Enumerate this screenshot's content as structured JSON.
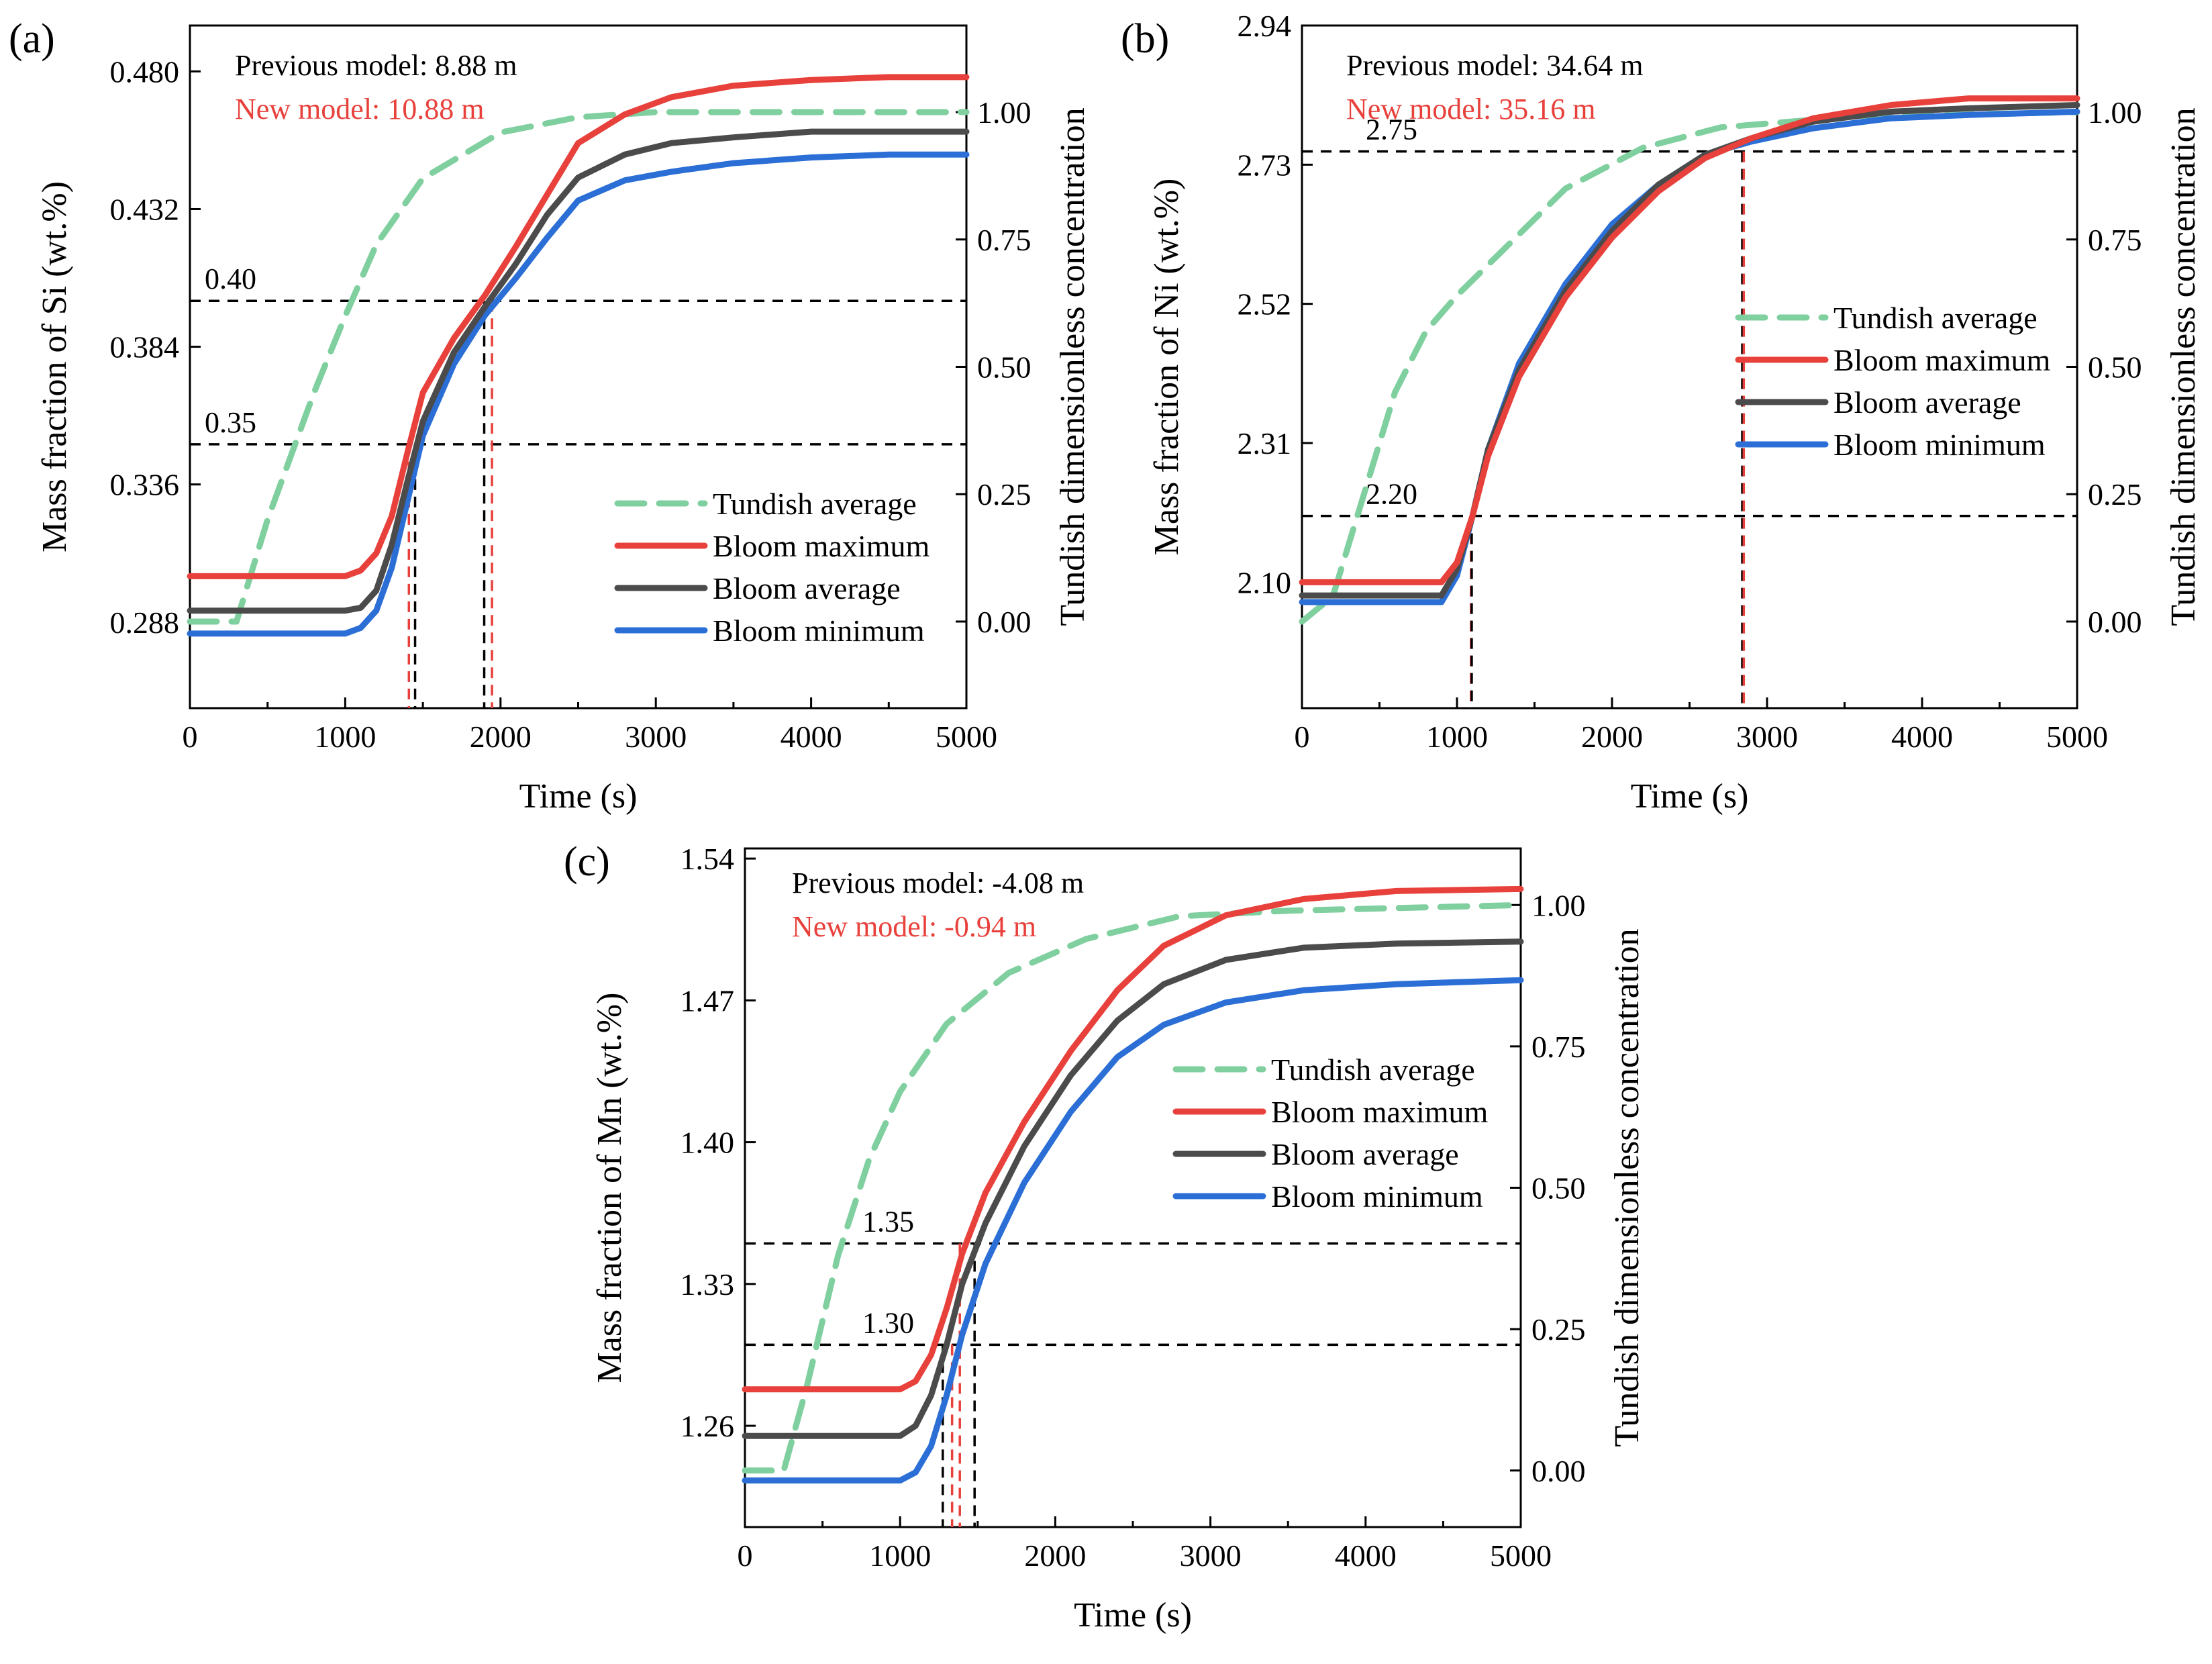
{
  "legend": [
    "Tundish average",
    "Bloom maximum",
    "Bloom average",
    "Bloom minimum"
  ],
  "colors": {
    "tundish": "#7fcf9f",
    "maximum": "#e8413c",
    "average": "#4b4b4b",
    "minimum": "#2b6fd6",
    "marker_black": "#000000",
    "marker_red": "#e8413c",
    "note_red": "#e8413c"
  },
  "chart_data": [
    {
      "type": "line",
      "panel_label": "(a)",
      "xlabel": "Time (s)",
      "ylabel": "Mass fraction of Si (wt.%)",
      "y2label": "Tundish dimensionless concentration",
      "xlim": [
        0,
        5000
      ],
      "ylim": [
        0.258,
        0.496
      ],
      "y2lim": [
        -0.17,
        1.17
      ],
      "xticks": [
        "0",
        "1000",
        "2000",
        "3000",
        "4000",
        "5000"
      ],
      "yticks": [
        "0.288",
        "0.336",
        "0.384",
        "0.432",
        "0.480"
      ],
      "y2ticks": [
        "0.00",
        "0.25",
        "0.50",
        "0.75",
        "1.00"
      ],
      "previous_model": "Previous model: 8.88 m",
      "new_model": "New model: 10.88 m",
      "thresholds": [
        {
          "label": "0.40",
          "value": 0.4
        },
        {
          "label": "0.35",
          "value": 0.35
        }
      ],
      "markers": [
        {
          "x": 1410,
          "color": "red",
          "threshold": 0.35
        },
        {
          "x": 1450,
          "color": "black",
          "threshold": 0.35
        },
        {
          "x": 1895,
          "color": "black",
          "threshold": 0.4
        },
        {
          "x": 1945,
          "color": "red",
          "threshold": 0.4
        }
      ],
      "tundish": {
        "t0": 0,
        "values": [
          [
            0,
            0.0
          ],
          [
            300,
            0.0
          ],
          [
            500,
            0.2
          ],
          [
            800,
            0.45
          ],
          [
            1000,
            0.6
          ],
          [
            1200,
            0.74
          ],
          [
            1500,
            0.87
          ],
          [
            2000,
            0.96
          ],
          [
            2500,
            0.99
          ],
          [
            3000,
            1.0
          ],
          [
            5000,
            1.0
          ]
        ]
      },
      "series": [
        {
          "name": "Bloom maximum",
          "x": [
            0,
            1000,
            1100,
            1200,
            1300,
            1400,
            1500,
            1700,
            1900,
            2100,
            2300,
            2500,
            2800,
            3100,
            3500,
            4000,
            4500,
            5000
          ],
          "y": [
            0.304,
            0.304,
            0.306,
            0.312,
            0.325,
            0.347,
            0.368,
            0.387,
            0.402,
            0.419,
            0.437,
            0.455,
            0.465,
            0.471,
            0.475,
            0.477,
            0.478,
            0.478
          ]
        },
        {
          "name": "Bloom average",
          "x": [
            0,
            1000,
            1100,
            1200,
            1300,
            1400,
            1500,
            1700,
            1900,
            2100,
            2300,
            2500,
            2800,
            3100,
            3500,
            4000,
            4500,
            5000
          ],
          "y": [
            0.292,
            0.292,
            0.293,
            0.299,
            0.315,
            0.337,
            0.358,
            0.382,
            0.398,
            0.413,
            0.43,
            0.443,
            0.451,
            0.455,
            0.457,
            0.459,
            0.459,
            0.459
          ]
        },
        {
          "name": "Bloom minimum",
          "x": [
            0,
            1000,
            1100,
            1200,
            1300,
            1400,
            1500,
            1700,
            1900,
            2100,
            2300,
            2500,
            2800,
            3100,
            3500,
            4000,
            4500,
            5000
          ],
          "y": [
            0.284,
            0.284,
            0.286,
            0.292,
            0.307,
            0.33,
            0.353,
            0.378,
            0.395,
            0.408,
            0.422,
            0.435,
            0.442,
            0.445,
            0.448,
            0.45,
            0.451,
            0.451
          ]
        }
      ]
    },
    {
      "type": "line",
      "panel_label": "(b)",
      "xlabel": "Time (s)",
      "ylabel": "Mass fraction of Ni (wt.%)",
      "y2label": "Tundish dimensionless concentration",
      "xlim": [
        0,
        5000
      ],
      "ylim": [
        1.91,
        2.94
      ],
      "y2lim": [
        -0.17,
        1.17
      ],
      "xticks": [
        "0",
        "1000",
        "2000",
        "3000",
        "4000",
        "5000"
      ],
      "yticks": [
        "2.10",
        "2.31",
        "2.52",
        "2.73",
        "2.94"
      ],
      "y2ticks": [
        "0.00",
        "0.25",
        "0.50",
        "0.75",
        "1.00"
      ],
      "previous_model": "Previous model: 34.64 m",
      "new_model": "New model: 35.16 m",
      "thresholds": [
        {
          "label": "2.75",
          "value": 2.75
        },
        {
          "label": "2.20",
          "value": 2.2
        }
      ],
      "markers": [
        {
          "x": 1090,
          "color": "red",
          "threshold": 2.2
        },
        {
          "x": 1095,
          "color": "black",
          "threshold": 2.2
        },
        {
          "x": 2840,
          "color": "black",
          "threshold": 2.75
        },
        {
          "x": 2850,
          "color": "red",
          "threshold": 2.75
        }
      ],
      "tundish": {
        "t0": 0,
        "values": [
          [
            0,
            0.0
          ],
          [
            200,
            0.05
          ],
          [
            400,
            0.25
          ],
          [
            600,
            0.45
          ],
          [
            800,
            0.57
          ],
          [
            1000,
            0.64
          ],
          [
            1300,
            0.73
          ],
          [
            1700,
            0.85
          ],
          [
            2200,
            0.93
          ],
          [
            2700,
            0.97
          ],
          [
            3500,
            0.99
          ],
          [
            5000,
            1.0
          ]
        ]
      },
      "series": [
        {
          "name": "Bloom maximum",
          "x": [
            0,
            900,
            1000,
            1100,
            1200,
            1400,
            1700,
            2000,
            2300,
            2600,
            2900,
            3300,
            3800,
            4300,
            5000
          ],
          "y": [
            2.1,
            2.1,
            2.13,
            2.2,
            2.29,
            2.41,
            2.53,
            2.62,
            2.69,
            2.74,
            2.77,
            2.8,
            2.82,
            2.83,
            2.83
          ]
        },
        {
          "name": "Bloom average",
          "x": [
            0,
            900,
            1000,
            1100,
            1200,
            1400,
            1700,
            2000,
            2300,
            2600,
            2900,
            3300,
            3800,
            4300,
            5000
          ],
          "y": [
            2.08,
            2.08,
            2.12,
            2.2,
            2.3,
            2.42,
            2.54,
            2.63,
            2.7,
            2.745,
            2.77,
            2.795,
            2.81,
            2.815,
            2.82
          ]
        },
        {
          "name": "Bloom minimum",
          "x": [
            0,
            900,
            1000,
            1100,
            1200,
            1400,
            1700,
            2000,
            2300,
            2600,
            2900,
            3300,
            3800,
            4300,
            5000
          ],
          "y": [
            2.07,
            2.07,
            2.11,
            2.2,
            2.3,
            2.43,
            2.55,
            2.64,
            2.7,
            2.745,
            2.765,
            2.785,
            2.8,
            2.805,
            2.81
          ]
        }
      ]
    },
    {
      "type": "line",
      "panel_label": "(c)",
      "xlabel": "Time (s)",
      "ylabel": "Mass fraction of Mn (wt.%)",
      "y2label": "Tundish dimensionless concentration",
      "xlim": [
        0,
        5000
      ],
      "ylim": [
        1.21,
        1.545
      ],
      "y2lim": [
        -0.1,
        1.1
      ],
      "xticks": [
        "0",
        "1000",
        "2000",
        "3000",
        "4000",
        "5000"
      ],
      "yticks": [
        "1.26",
        "1.33",
        "1.40",
        "1.47",
        "1.54"
      ],
      "y2ticks": [
        "0.00",
        "0.25",
        "0.50",
        "0.75",
        "1.00"
      ],
      "previous_model": "Previous model: -4.08 m",
      "new_model": "New model: -0.94 m",
      "thresholds": [
        {
          "label": "1.35",
          "value": 1.35
        },
        {
          "label": "1.30",
          "value": 1.3
        }
      ],
      "markers": [
        {
          "x": 1275,
          "color": "black",
          "threshold": 1.3
        },
        {
          "x": 1335,
          "color": "red",
          "threshold": 1.3
        },
        {
          "x": 1385,
          "color": "red",
          "threshold": 1.35
        },
        {
          "x": 1480,
          "color": "black",
          "threshold": 1.35
        }
      ],
      "tundish": {
        "t0": 0,
        "values": [
          [
            0,
            0.0
          ],
          [
            250,
            0.0
          ],
          [
            400,
            0.15
          ],
          [
            600,
            0.38
          ],
          [
            800,
            0.55
          ],
          [
            1000,
            0.67
          ],
          [
            1300,
            0.79
          ],
          [
            1700,
            0.88
          ],
          [
            2200,
            0.94
          ],
          [
            2800,
            0.98
          ],
          [
            3500,
            0.99
          ],
          [
            5000,
            1.0
          ]
        ]
      },
      "series": [
        {
          "name": "Bloom maximum",
          "x": [
            0,
            1000,
            1100,
            1200,
            1300,
            1400,
            1550,
            1800,
            2100,
            2400,
            2700,
            3100,
            3600,
            4200,
            5000
          ],
          "y": [
            1.278,
            1.278,
            1.282,
            1.295,
            1.318,
            1.345,
            1.375,
            1.41,
            1.445,
            1.475,
            1.497,
            1.512,
            1.52,
            1.524,
            1.525
          ]
        },
        {
          "name": "Bloom average",
          "x": [
            0,
            1000,
            1100,
            1200,
            1300,
            1400,
            1550,
            1800,
            2100,
            2400,
            2700,
            3100,
            3600,
            4200,
            5000
          ],
          "y": [
            1.255,
            1.255,
            1.26,
            1.275,
            1.3,
            1.33,
            1.36,
            1.398,
            1.433,
            1.46,
            1.478,
            1.49,
            1.496,
            1.498,
            1.499
          ]
        },
        {
          "name": "Bloom minimum",
          "x": [
            0,
            1000,
            1100,
            1200,
            1300,
            1400,
            1550,
            1800,
            2100,
            2400,
            2700,
            3100,
            3600,
            4200,
            5000
          ],
          "y": [
            1.233,
            1.233,
            1.237,
            1.25,
            1.275,
            1.305,
            1.34,
            1.38,
            1.415,
            1.442,
            1.458,
            1.469,
            1.475,
            1.478,
            1.48
          ]
        }
      ]
    }
  ]
}
